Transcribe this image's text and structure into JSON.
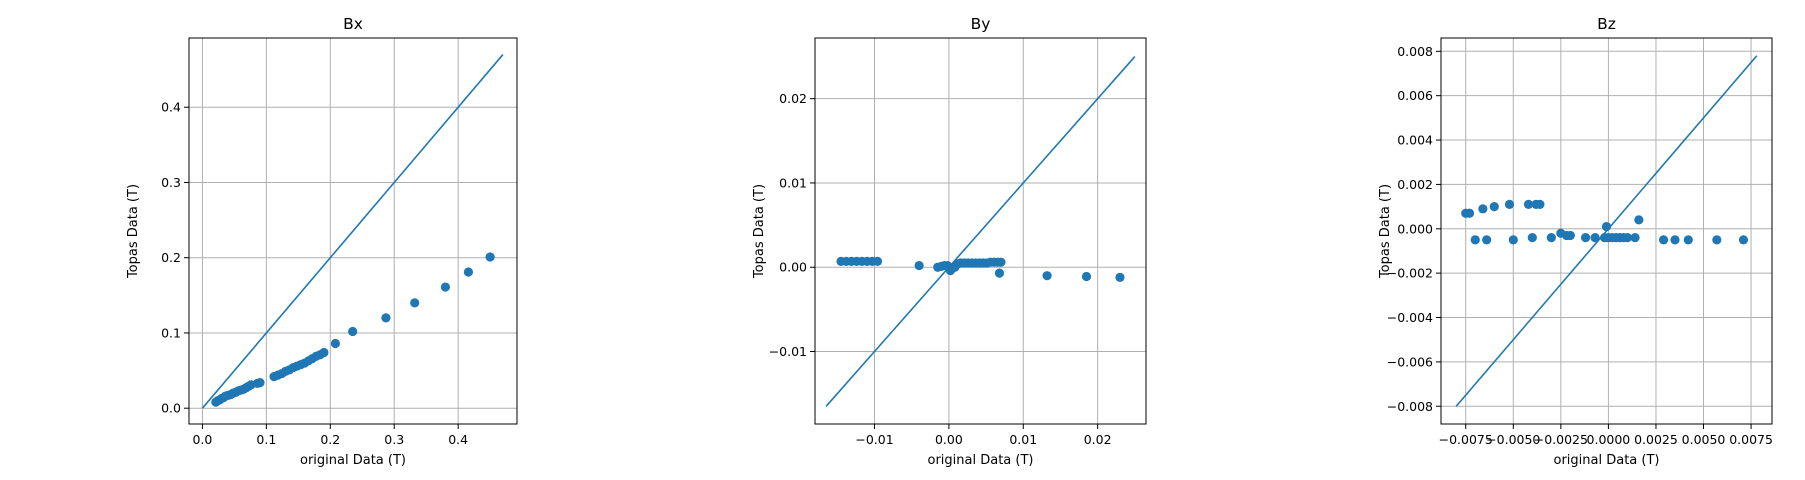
{
  "chart_data": [
    {
      "type": "scatter",
      "title": "Bx",
      "xlabel": "original Data (T)",
      "ylabel": "Topas Data (T)",
      "xlim": [
        -0.021,
        0.492
      ],
      "ylim": [
        -0.021,
        0.492
      ],
      "xticks": [
        0.0,
        0.1,
        0.2,
        0.3,
        0.4
      ],
      "xtick_labels": [
        "0.0",
        "0.1",
        "0.2",
        "0.3",
        "0.4"
      ],
      "yticks": [
        0.0,
        0.1,
        0.2,
        0.3,
        0.4
      ],
      "ytick_labels": [
        "0.0",
        "0.1",
        "0.2",
        "0.3",
        "0.4"
      ],
      "grid": true,
      "color": "#1f77b4",
      "series": [
        {
          "type": "line",
          "x": [
            0.0,
            0.47
          ],
          "y": [
            0.0,
            0.47
          ]
        },
        {
          "type": "scatter",
          "x": [
            0.021,
            0.024,
            0.027,
            0.03,
            0.033,
            0.036,
            0.04,
            0.044,
            0.048,
            0.052,
            0.056,
            0.06,
            0.064,
            0.068,
            0.072,
            0.076,
            0.086,
            0.09,
            0.112,
            0.118,
            0.124,
            0.13,
            0.136,
            0.142,
            0.148,
            0.154,
            0.16,
            0.166,
            0.172,
            0.178,
            0.184,
            0.19,
            0.208,
            0.235,
            0.287,
            0.332,
            0.38,
            0.416,
            0.45
          ],
          "y": [
            0.008,
            0.01,
            0.011,
            0.013,
            0.014,
            0.016,
            0.017,
            0.018,
            0.02,
            0.021,
            0.023,
            0.024,
            0.025,
            0.027,
            0.029,
            0.031,
            0.033,
            0.034,
            0.042,
            0.044,
            0.046,
            0.049,
            0.051,
            0.054,
            0.056,
            0.058,
            0.06,
            0.063,
            0.066,
            0.069,
            0.071,
            0.074,
            0.086,
            0.102,
            0.12,
            0.14,
            0.161,
            0.181,
            0.201
          ]
        }
      ]
    },
    {
      "type": "scatter",
      "title": "By",
      "xlabel": "original Data (T)",
      "ylabel": "Topas Data (T)",
      "xlim": [
        -0.018,
        0.0265
      ],
      "ylim": [
        -0.0186,
        0.0272
      ],
      "xticks": [
        -0.01,
        0.0,
        0.01,
        0.02
      ],
      "xtick_labels": [
        "−0.01",
        "0.00",
        "0.01",
        "0.02"
      ],
      "yticks": [
        -0.01,
        0.0,
        0.01,
        0.02
      ],
      "ytick_labels": [
        "−0.01",
        "0.00",
        "0.01",
        "0.02"
      ],
      "grid": true,
      "color": "#1f77b4",
      "series": [
        {
          "type": "line",
          "x": [
            -0.0165,
            0.025
          ],
          "y": [
            -0.0165,
            0.025
          ]
        },
        {
          "type": "scatter",
          "x": [
            -0.0145,
            -0.0138,
            -0.0131,
            -0.0124,
            -0.0117,
            -0.011,
            -0.0103,
            -0.0096,
            -0.004,
            -0.0015,
            -0.001,
            -0.0006,
            -0.0002,
            0.0002,
            0.0005,
            0.0008,
            0.0012,
            0.0016,
            0.0021,
            0.0026,
            0.0031,
            0.0036,
            0.0041,
            0.0046,
            0.0051,
            0.0056,
            0.0061,
            0.0066,
            0.007,
            0.0068,
            0.0132,
            0.0185,
            0.023
          ],
          "y": [
            0.0007,
            0.0007,
            0.0007,
            0.0007,
            0.0007,
            0.0007,
            0.0007,
            0.0007,
            0.0002,
            0.0,
            0.0001,
            0.0002,
            0.0002,
            -0.0004,
            -0.0001,
            0.0,
            0.0004,
            0.0005,
            0.0005,
            0.0005,
            0.0005,
            0.0005,
            0.0005,
            0.0005,
            0.0005,
            0.0006,
            0.0006,
            0.0006,
            0.0006,
            -0.0007,
            -0.001,
            -0.0011,
            -0.0012
          ]
        }
      ]
    },
    {
      "type": "scatter",
      "title": "Bz",
      "xlabel": "original Data (T)",
      "ylabel": "Topas Data (T)",
      "xlim": [
        -0.0088,
        0.0086
      ],
      "ylim": [
        -0.0088,
        0.0086
      ],
      "xticks": [
        -0.0075,
        -0.005,
        -0.0025,
        0.0,
        0.0025,
        0.005,
        0.0075
      ],
      "xtick_labels": [
        "−0.0075",
        "−0.0050",
        "−0.0025",
        "0.0000",
        "0.0025",
        "0.0050",
        "0.0075"
      ],
      "yticks": [
        -0.008,
        -0.006,
        -0.004,
        -0.002,
        0.0,
        0.002,
        0.004,
        0.006,
        0.008
      ],
      "ytick_labels": [
        "−0.008",
        "−0.006",
        "−0.004",
        "−0.002",
        "0.000",
        "0.002",
        "0.004",
        "0.006",
        "0.008"
      ],
      "grid": true,
      "color": "#1f77b4",
      "series": [
        {
          "type": "line",
          "x": [
            -0.008,
            0.0078
          ],
          "y": [
            -0.008,
            0.0078
          ]
        },
        {
          "type": "scatter",
          "x": [
            -0.0075,
            -0.0073,
            -0.0066,
            -0.006,
            -0.0052,
            -0.0042,
            -0.0038,
            -0.0036,
            -0.007,
            -0.0064,
            -0.005,
            -0.004,
            -0.003,
            -0.0025,
            -0.0022,
            -0.002,
            -0.0012,
            -0.0007,
            -0.0002,
            0.0,
            0.0002,
            0.0004,
            0.0006,
            0.0008,
            0.001,
            0.0014,
            -0.0001,
            0.0016,
            0.0029,
            0.0035,
            0.0042,
            0.0057,
            0.0071
          ],
          "y": [
            0.0007,
            0.0007,
            0.0009,
            0.001,
            0.0011,
            0.0011,
            0.0011,
            0.0011,
            -0.0005,
            -0.0005,
            -0.0005,
            -0.0004,
            -0.0004,
            -0.0002,
            -0.0003,
            -0.0003,
            -0.0004,
            -0.0004,
            -0.0004,
            -0.0004,
            -0.0004,
            -0.0004,
            -0.0004,
            -0.0004,
            -0.0004,
            -0.0004,
            0.0001,
            0.0004,
            -0.0005,
            -0.0005,
            -0.0005,
            -0.0005,
            -0.0005
          ]
        }
      ]
    }
  ]
}
